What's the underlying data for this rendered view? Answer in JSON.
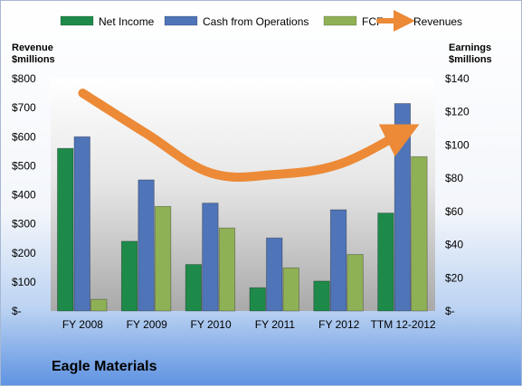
{
  "company": "Eagle Materials",
  "colors": {
    "net_income": "#1e8a4a",
    "cash_from_operations": "#4f74b8",
    "fcf": "#8fb156",
    "revenues": "#ec8a37"
  },
  "chart_data": {
    "type": "bar",
    "categories": [
      "FY 2008",
      "FY 2009",
      "FY 2010",
      "FY 2011",
      "FY 2012",
      "TTM 12-2012"
    ],
    "series": [
      {
        "name": "Net Income",
        "axis": "right",
        "values": [
          98,
          42,
          28,
          14,
          18,
          59
        ]
      },
      {
        "name": "Cash from Operations",
        "axis": "right",
        "values": [
          105,
          79,
          65,
          44,
          61,
          125
        ]
      },
      {
        "name": "FCF",
        "axis": "right",
        "values": [
          7,
          63,
          50,
          26,
          34,
          93
        ]
      },
      {
        "name": "Revenues",
        "type": "line",
        "axis": "left",
        "values": [
          750,
          610,
          475,
          470,
          505,
          615
        ]
      }
    ],
    "ylabel_left": "Revenue\n$millions",
    "ylabel_right": "Earnings\n$millions",
    "ylim_left": [
      0,
      800
    ],
    "ylim_right": [
      0,
      140
    ],
    "left_ticks": [
      "$-",
      "$100",
      "$200",
      "$300",
      "$400",
      "$500",
      "$600",
      "$700",
      "$800"
    ],
    "right_ticks": [
      "$-",
      "$20",
      "$40",
      "$60",
      "$80",
      "$100",
      "$120",
      "$140"
    ],
    "legend_position": "top",
    "grid": false
  }
}
